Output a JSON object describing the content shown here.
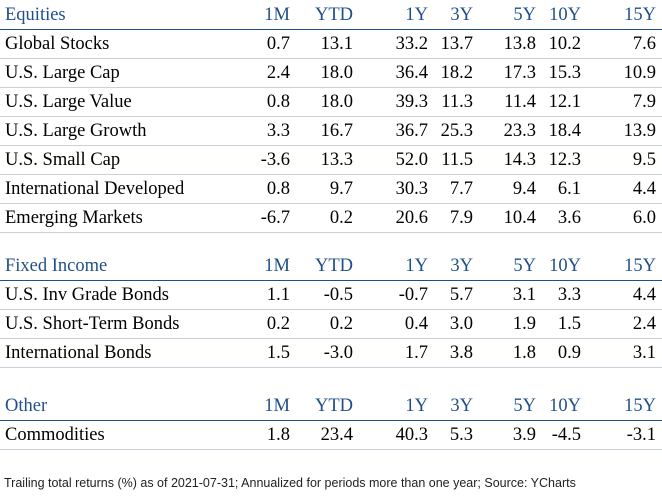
{
  "colors": {
    "header_text": "#1f4f8b",
    "header_rule": "#1f4f8b",
    "row_rule": "#c9d1dc"
  },
  "columns": [
    "1M",
    "YTD",
    "1Y",
    "3Y",
    "5Y",
    "10Y",
    "15Y"
  ],
  "sections": [
    {
      "title": "Equities",
      "rows": [
        {
          "name": "Global Stocks",
          "values": [
            "0.7",
            "13.1",
            "33.2",
            "13.7",
            "13.8",
            "10.2",
            "7.6"
          ]
        },
        {
          "name": "U.S. Large Cap",
          "values": [
            "2.4",
            "18.0",
            "36.4",
            "18.2",
            "17.3",
            "15.3",
            "10.9"
          ]
        },
        {
          "name": "U.S. Large Value",
          "values": [
            "0.8",
            "18.0",
            "39.3",
            "11.3",
            "11.4",
            "12.1",
            "7.9"
          ]
        },
        {
          "name": "U.S. Large Growth",
          "values": [
            "3.3",
            "16.7",
            "36.7",
            "25.3",
            "23.3",
            "18.4",
            "13.9"
          ]
        },
        {
          "name": "U.S. Small Cap",
          "values": [
            "-3.6",
            "13.3",
            "52.0",
            "11.5",
            "14.3",
            "12.3",
            "9.5"
          ]
        },
        {
          "name": "International Developed",
          "values": [
            "0.8",
            "9.7",
            "30.3",
            "7.7",
            "9.4",
            "6.1",
            "4.4"
          ]
        },
        {
          "name": "Emerging Markets",
          "values": [
            "-6.7",
            "0.2",
            "20.6",
            "7.9",
            "10.4",
            "3.6",
            "6.0"
          ]
        }
      ]
    },
    {
      "title": "Fixed Income",
      "rows": [
        {
          "name": "U.S. Inv Grade Bonds",
          "values": [
            "1.1",
            "-0.5",
            "-0.7",
            "5.7",
            "3.1",
            "3.3",
            "4.4"
          ]
        },
        {
          "name": "U.S. Short-Term Bonds",
          "values": [
            "0.2",
            "0.2",
            "0.4",
            "3.0",
            "1.9",
            "1.5",
            "2.4"
          ]
        },
        {
          "name": "International Bonds",
          "values": [
            "1.5",
            "-3.0",
            "1.7",
            "3.8",
            "1.8",
            "0.9",
            "3.1"
          ]
        }
      ]
    },
    {
      "title": "Other",
      "rows": [
        {
          "name": "Commodities",
          "values": [
            "1.8",
            "23.4",
            "40.3",
            "5.3",
            "3.9",
            "-4.5",
            "-3.1"
          ]
        }
      ]
    }
  ],
  "footnote": "Trailing total returns (%) as of 2021-07-31; Annualized for periods more than one year; Source: YCharts"
}
